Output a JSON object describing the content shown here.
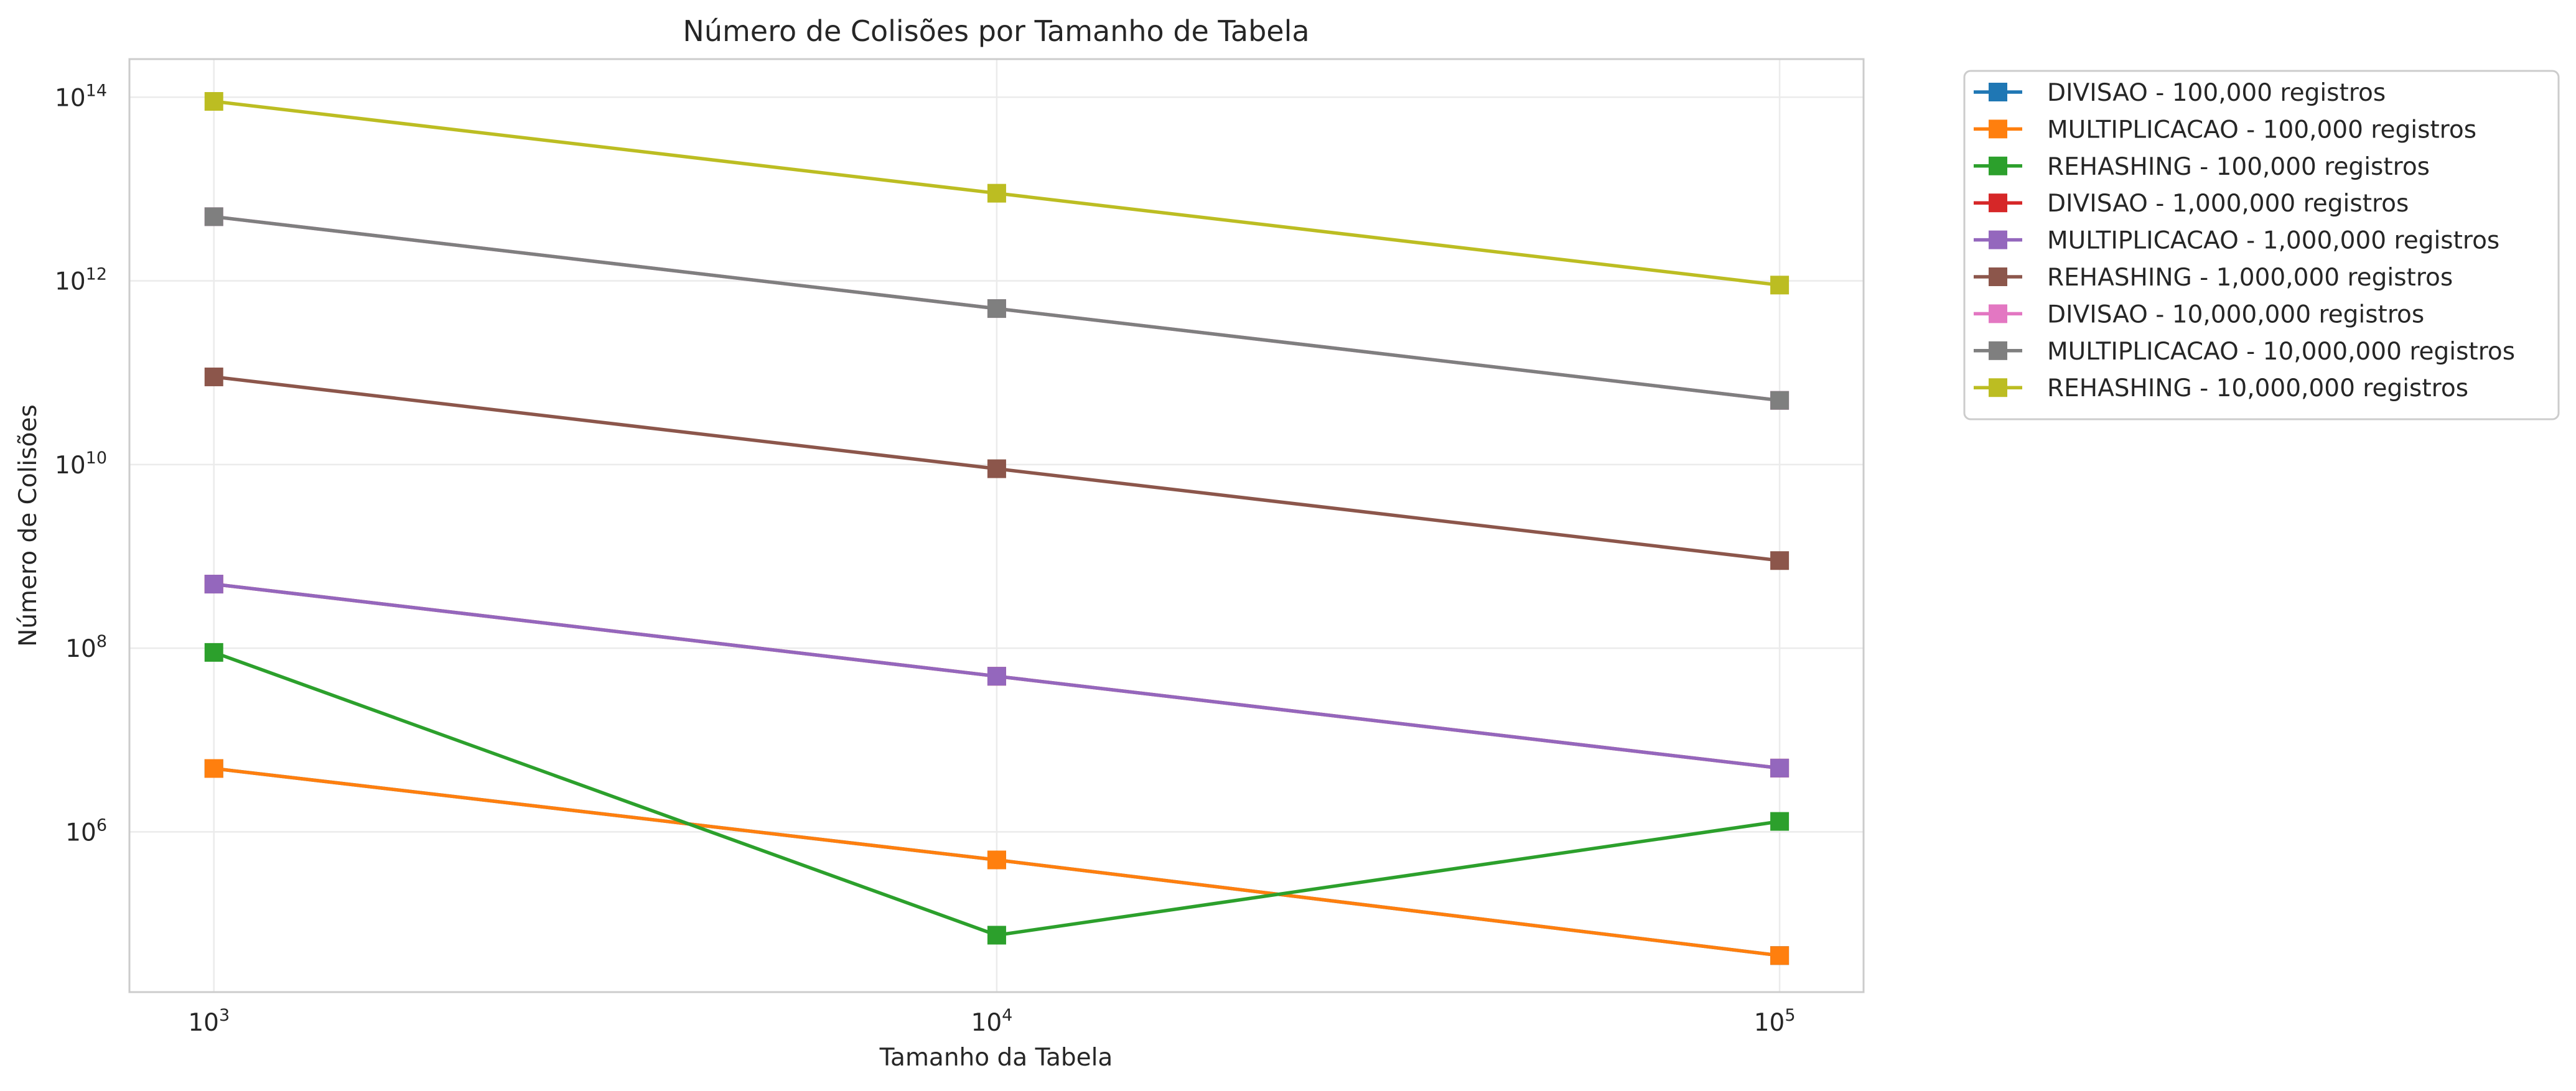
{
  "chart_data": {
    "type": "line",
    "title": "Número de Colisões por Tamanho de Tabela",
    "xlabel": "Tamanho da Tabela",
    "ylabel": "Número de Colisões",
    "x_scale": "log",
    "y_scale": "log",
    "xlim": [
      780,
      128000
    ],
    "ylim": [
      18000,
      260000000000000
    ],
    "grid": true,
    "legend_position": "outside-top-right",
    "x_ticks": [
      {
        "value": 1000,
        "base": "10",
        "exp": "3"
      },
      {
        "value": 10000,
        "base": "10",
        "exp": "4"
      },
      {
        "value": 100000,
        "base": "10",
        "exp": "5"
      }
    ],
    "y_ticks": [
      {
        "value": 1000000,
        "base": "10",
        "exp": "6"
      },
      {
        "value": 100000000,
        "base": "10",
        "exp": "8"
      },
      {
        "value": 10000000000,
        "base": "10",
        "exp": "10"
      },
      {
        "value": 1000000000000,
        "base": "10",
        "exp": "12"
      },
      {
        "value": 100000000000000,
        "base": "10",
        "exp": "14"
      }
    ],
    "x": [
      1000,
      10000,
      100000
    ],
    "series": [
      {
        "name": "DIVISAO - 100,000 registros",
        "color": "#1f77b4",
        "values": [
          4900000,
          495000,
          45000
        ]
      },
      {
        "name": "MULTIPLICACAO - 100,000 registros",
        "color": "#ff7f0e",
        "values": [
          4900000,
          495000,
          45000
        ]
      },
      {
        "name": "REHASHING - 100,000 registros",
        "color": "#2ca02c",
        "values": [
          90000000,
          75000,
          1300000
        ]
      },
      {
        "name": "DIVISAO - 1,000,000 registros",
        "color": "#d62728",
        "values": [
          499000000,
          49500000,
          4950000
        ]
      },
      {
        "name": "MULTIPLICACAO - 1,000,000 registros",
        "color": "#9467bd",
        "values": [
          499000000,
          49500000,
          4950000
        ]
      },
      {
        "name": "REHASHING - 1,000,000 registros",
        "color": "#8c564b",
        "values": [
          90000000000,
          9000000000,
          900000000
        ]
      },
      {
        "name": "DIVISAO - 10,000,000 registros",
        "color": "#e377c2",
        "values": [
          4999000000000,
          499500000000,
          49950000000
        ]
      },
      {
        "name": "MULTIPLICACAO - 10,000,000 registros",
        "color": "#7f7f7f",
        "values": [
          4999000000000,
          499500000000,
          49950000000
        ]
      },
      {
        "name": "REHASHING - 10,000,000 registros",
        "color": "#bcbd22",
        "values": [
          90000000000000,
          9000000000000,
          900000000000
        ]
      }
    ]
  }
}
